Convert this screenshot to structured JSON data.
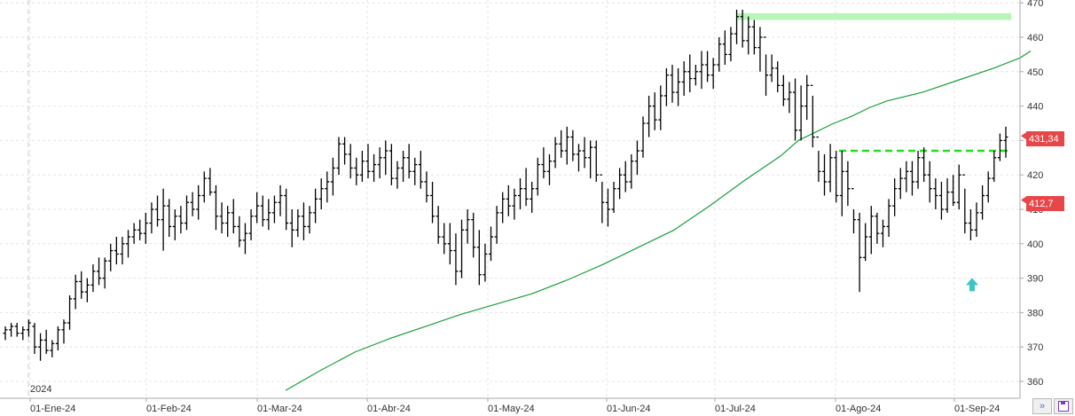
{
  "chart_data": {
    "type": "ohlc",
    "x_ticks": [
      "01-Ene-24",
      "01-Feb-24",
      "01-Mar-24",
      "01-Abr-24",
      "01-May-24",
      "01-Jun-24",
      "01-Jul-24",
      "01-Ago-24",
      "01-Sep-24"
    ],
    "year_marker": "2024",
    "y_ticks": [
      "470",
      "460",
      "450",
      "440",
      "430",
      "420",
      "410",
      "400",
      "390",
      "380",
      "370",
      "360"
    ],
    "ylim": [
      357,
      471
    ],
    "grid": true,
    "colors": {
      "bars": "#000000",
      "ma": "#1a9e3c",
      "resistance_top": "#b9f5b9",
      "breakout_line": "#22dd22",
      "price_badge": "#e8474a",
      "arrow": "#3cc4c4"
    },
    "last_price_label": "431,34",
    "ma_label": "412,7",
    "last_price": 431.34,
    "ma_value": 412.7,
    "resistance_zone": [
      465,
      467
    ],
    "breakout_level": 427,
    "bars": [
      [
        374,
        376,
        372,
        375
      ],
      [
        375,
        377,
        373,
        376
      ],
      [
        376,
        377,
        373,
        374
      ],
      [
        374,
        376,
        372,
        375
      ],
      [
        375,
        378,
        373,
        377
      ],
      [
        376,
        377,
        368,
        370
      ],
      [
        370,
        374,
        366,
        372
      ],
      [
        372,
        375,
        368,
        369
      ],
      [
        369,
        372,
        367,
        371
      ],
      [
        371,
        376,
        369,
        375
      ],
      [
        375,
        378,
        371,
        377
      ],
      [
        377,
        385,
        375,
        384
      ],
      [
        384,
        391,
        381,
        389
      ],
      [
        389,
        392,
        384,
        386
      ],
      [
        386,
        390,
        383,
        388
      ],
      [
        388,
        394,
        386,
        392
      ],
      [
        392,
        396,
        388,
        390
      ],
      [
        390,
        396,
        387,
        395
      ],
      [
        395,
        400,
        392,
        398
      ],
      [
        398,
        402,
        394,
        397
      ],
      [
        397,
        402,
        394,
        400
      ],
      [
        400,
        404,
        396,
        402
      ],
      [
        402,
        406,
        400,
        404
      ],
      [
        404,
        407,
        401,
        403
      ],
      [
        403,
        409,
        400,
        406
      ],
      [
        406,
        412,
        403,
        410
      ],
      [
        410,
        414,
        405,
        407
      ],
      [
        407,
        416,
        398,
        411
      ],
      [
        411,
        413,
        402,
        405
      ],
      [
        405,
        410,
        401,
        408
      ],
      [
        408,
        411,
        403,
        406
      ],
      [
        406,
        414,
        404,
        412
      ],
      [
        412,
        415,
        408,
        410
      ],
      [
        410,
        417,
        407,
        414
      ],
      [
        414,
        421,
        412,
        419
      ],
      [
        419,
        422,
        414,
        415
      ],
      [
        415,
        417,
        404,
        408
      ],
      [
        408,
        412,
        403,
        406
      ],
      [
        406,
        411,
        402,
        409
      ],
      [
        409,
        413,
        403,
        405
      ],
      [
        405,
        408,
        399,
        401
      ],
      [
        401,
        406,
        397,
        403
      ],
      [
        403,
        410,
        401,
        408
      ],
      [
        408,
        415,
        406,
        411
      ],
      [
        411,
        414,
        405,
        407
      ],
      [
        407,
        413,
        404,
        409
      ],
      [
        409,
        414,
        406,
        412
      ],
      [
        412,
        417,
        408,
        414
      ],
      [
        414,
        416,
        404,
        406
      ],
      [
        406,
        410,
        399,
        404
      ],
      [
        404,
        410,
        402,
        408
      ],
      [
        408,
        412,
        401,
        405
      ],
      [
        405,
        411,
        403,
        409
      ],
      [
        409,
        416,
        406,
        413
      ],
      [
        413,
        419,
        410,
        416
      ],
      [
        416,
        421,
        412,
        418
      ],
      [
        418,
        425,
        414,
        422
      ],
      [
        422,
        431,
        420,
        429
      ],
      [
        429,
        431,
        423,
        426
      ],
      [
        426,
        429,
        419,
        422
      ],
      [
        422,
        425,
        417,
        420
      ],
      [
        420,
        427,
        418,
        424
      ],
      [
        424,
        429,
        419,
        421
      ],
      [
        421,
        426,
        418,
        423
      ],
      [
        423,
        428,
        419,
        425
      ],
      [
        425,
        430,
        420,
        427
      ],
      [
        427,
        429,
        417,
        419
      ],
      [
        419,
        424,
        416,
        422
      ],
      [
        422,
        427,
        418,
        425
      ],
      [
        425,
        429,
        419,
        421
      ],
      [
        421,
        425,
        417,
        423
      ],
      [
        423,
        427,
        416,
        418
      ],
      [
        418,
        421,
        412,
        414
      ],
      [
        414,
        418,
        406,
        408
      ],
      [
        408,
        411,
        400,
        402
      ],
      [
        402,
        406,
        397,
        400
      ],
      [
        400,
        406,
        394,
        398
      ],
      [
        398,
        403,
        388,
        392
      ],
      [
        392,
        407,
        390,
        404
      ],
      [
        404,
        410,
        400,
        407
      ],
      [
        407,
        409,
        396,
        399
      ],
      [
        399,
        404,
        388,
        391
      ],
      [
        391,
        400,
        389,
        397
      ],
      [
        397,
        405,
        395,
        402
      ],
      [
        402,
        411,
        400,
        409
      ],
      [
        409,
        415,
        406,
        413
      ],
      [
        413,
        417,
        408,
        411
      ],
      [
        411,
        416,
        407,
        414
      ],
      [
        414,
        419,
        410,
        416
      ],
      [
        416,
        422,
        411,
        413
      ],
      [
        413,
        418,
        409,
        416
      ],
      [
        416,
        425,
        414,
        423
      ],
      [
        423,
        428,
        419,
        421
      ],
      [
        421,
        426,
        417,
        424
      ],
      [
        424,
        431,
        422,
        429
      ],
      [
        429,
        433,
        425,
        427
      ],
      [
        427,
        434,
        423,
        431
      ],
      [
        431,
        433,
        424,
        426
      ],
      [
        426,
        429,
        421,
        427
      ],
      [
        427,
        431,
        422,
        425
      ],
      [
        425,
        430,
        419,
        428
      ],
      [
        428,
        430,
        418,
        420
      ],
      [
        420,
        418,
        406,
        412
      ],
      [
        412,
        416,
        405,
        410
      ],
      [
        410,
        418,
        409,
        416
      ],
      [
        416,
        422,
        413,
        420
      ],
      [
        420,
        424,
        415,
        418
      ],
      [
        418,
        426,
        416,
        424
      ],
      [
        424,
        430,
        420,
        427
      ],
      [
        427,
        437,
        425,
        435
      ],
      [
        435,
        443,
        431,
        440
      ],
      [
        440,
        444,
        433,
        436
      ],
      [
        436,
        446,
        433,
        443
      ],
      [
        443,
        451,
        440,
        449
      ],
      [
        449,
        452,
        441,
        444
      ],
      [
        444,
        451,
        440,
        447
      ],
      [
        447,
        453,
        443,
        450
      ],
      [
        450,
        455,
        444,
        448
      ],
      [
        448,
        452,
        446,
        450
      ],
      [
        450,
        456,
        445,
        452
      ],
      [
        452,
        456,
        447,
        449
      ],
      [
        449,
        454,
        445,
        452
      ],
      [
        452,
        460,
        450,
        458
      ],
      [
        458,
        462,
        452,
        455
      ],
      [
        455,
        463,
        453,
        461
      ],
      [
        461,
        468,
        458,
        466
      ],
      [
        466,
        468,
        457,
        459
      ],
      [
        459,
        466,
        455,
        463
      ],
      [
        463,
        465,
        455,
        457
      ],
      [
        457,
        463,
        450,
        460
      ],
      [
        460,
        455,
        443,
        449
      ],
      [
        449,
        455,
        447,
        451
      ],
      [
        451,
        453,
        444,
        446
      ],
      [
        446,
        449,
        440,
        442
      ],
      [
        442,
        447,
        438,
        444
      ],
      [
        444,
        448,
        430,
        433
      ],
      [
        433,
        446,
        430,
        440
      ],
      [
        440,
        449,
        436,
        446
      ],
      [
        446,
        443,
        428,
        431
      ],
      [
        431,
        427,
        418,
        421
      ],
      [
        421,
        426,
        414,
        418
      ],
      [
        418,
        429,
        415,
        425
      ],
      [
        425,
        427,
        412,
        414
      ],
      [
        414,
        427,
        408,
        421
      ],
      [
        421,
        424,
        411,
        416
      ],
      [
        416,
        410,
        403,
        407
      ],
      [
        407,
        409,
        386,
        396
      ],
      [
        396,
        406,
        395,
        402
      ],
      [
        402,
        411,
        397,
        408
      ],
      [
        408,
        409,
        400,
        403
      ],
      [
        403,
        407,
        399,
        405
      ],
      [
        405,
        413,
        402,
        411
      ],
      [
        411,
        419,
        408,
        416
      ],
      [
        416,
        422,
        413,
        419
      ],
      [
        419,
        424,
        415,
        421
      ],
      [
        421,
        424,
        414,
        418
      ],
      [
        418,
        427,
        416,
        425
      ],
      [
        425,
        428,
        418,
        420
      ],
      [
        420,
        424,
        412,
        416
      ],
      [
        416,
        419,
        410,
        414
      ],
      [
        414,
        418,
        407,
        410
      ],
      [
        410,
        419,
        409,
        415
      ],
      [
        415,
        420,
        411,
        412
      ],
      [
        412,
        423,
        410,
        420
      ],
      [
        420,
        416,
        403,
        406
      ],
      [
        406,
        410,
        401,
        404
      ],
      [
        404,
        412,
        402,
        409
      ],
      [
        409,
        417,
        407,
        414
      ],
      [
        414,
        421,
        412,
        419
      ],
      [
        419,
        427,
        418,
        425
      ],
      [
        425,
        432,
        424,
        430
      ],
      [
        430,
        434,
        425,
        431
      ]
    ],
    "ma": [
      [
        322,
        357.4
      ],
      [
        360,
        363
      ],
      [
        400,
        368.5
      ],
      [
        440,
        372.5
      ],
      [
        480,
        376
      ],
      [
        520,
        379.5
      ],
      [
        560,
        382.5
      ],
      [
        600,
        385.5
      ],
      [
        640,
        389.5
      ],
      [
        680,
        394
      ],
      [
        720,
        399
      ],
      [
        760,
        404
      ],
      [
        800,
        411
      ],
      [
        840,
        418.5
      ],
      [
        880,
        425.5
      ],
      [
        900,
        430
      ],
      [
        940,
        435
      ],
      [
        960,
        437
      ],
      [
        980,
        439.5
      ],
      [
        1000,
        441.5
      ],
      [
        1040,
        444
      ],
      [
        1080,
        447.5
      ],
      [
        1120,
        451
      ],
      [
        1150,
        454
      ],
      [
        1162,
        456
      ]
    ],
    "arrow": {
      "x": 1096,
      "y_value": 388
    }
  }
}
